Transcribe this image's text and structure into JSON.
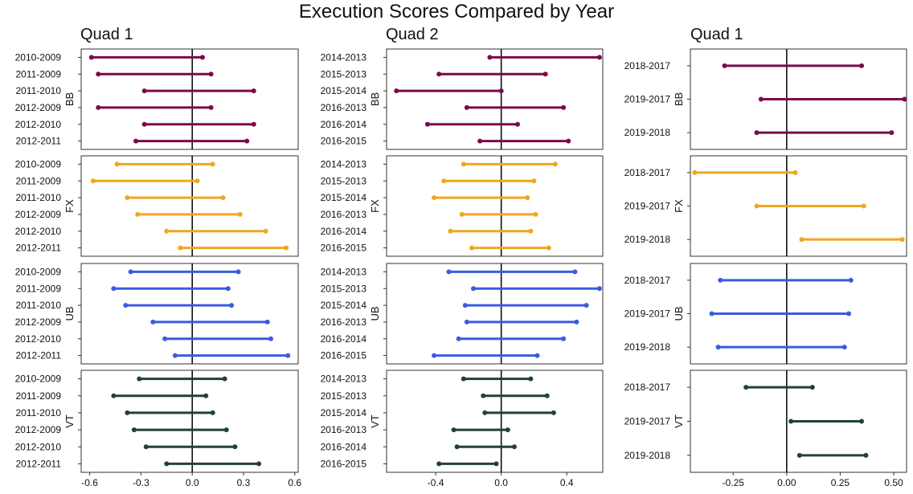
{
  "title": "Execution Scores Compared by Year",
  "chart_data": [
    {
      "type": "dumbbell",
      "title": "Quad 1",
      "xlim": [
        -0.65,
        0.62
      ],
      "x_ticks": [
        -0.6,
        -0.3,
        0.0,
        0.3,
        0.6
      ],
      "x_tick_labels": [
        "-0.6",
        "-0.3",
        "0.0",
        "0.3",
        "0.6"
      ],
      "reference_line": 0,
      "grid": false,
      "categories": [
        "2010-2009",
        "2011-2009",
        "2011-2010",
        "2012-2009",
        "2012-2010",
        "2012-2011"
      ],
      "panels": [
        {
          "label": "BB",
          "color": "#7B0A4B",
          "low": [
            -0.59,
            -0.55,
            -0.28,
            -0.55,
            -0.28,
            -0.33
          ],
          "high": [
            0.06,
            0.11,
            0.36,
            0.11,
            0.36,
            0.32
          ]
        },
        {
          "label": "FX",
          "color": "#F0A71E",
          "low": [
            -0.44,
            -0.58,
            -0.38,
            -0.32,
            -0.15,
            -0.07
          ],
          "high": [
            0.12,
            0.03,
            0.18,
            0.28,
            0.43,
            0.55
          ]
        },
        {
          "label": "UB",
          "color": "#3A5BE0",
          "low": [
            -0.36,
            -0.46,
            -0.39,
            -0.23,
            -0.16,
            -0.1
          ],
          "high": [
            0.27,
            0.21,
            0.23,
            0.44,
            0.46,
            0.56
          ]
        },
        {
          "label": "VT",
          "color": "#22403A",
          "low": [
            -0.31,
            -0.46,
            -0.38,
            -0.34,
            -0.27,
            -0.15
          ],
          "high": [
            0.19,
            0.08,
            0.12,
            0.2,
            0.25,
            0.39
          ]
        }
      ]
    },
    {
      "type": "dumbbell",
      "title": "Quad 2",
      "xlim": [
        -0.7,
        0.62
      ],
      "x_ticks": [
        -0.4,
        0.0,
        0.4
      ],
      "x_tick_labels": [
        "-0.4",
        "0.0",
        "0.4"
      ],
      "reference_line": 0,
      "grid": false,
      "categories": [
        "2014-2013",
        "2015-2013",
        "2015-2014",
        "2016-2013",
        "2016-2014",
        "2016-2015"
      ],
      "panels": [
        {
          "label": "BB",
          "color": "#7B0A4B",
          "low": [
            -0.07,
            -0.38,
            -0.64,
            -0.21,
            -0.45,
            -0.13
          ],
          "high": [
            0.6,
            0.27,
            0.0,
            0.38,
            0.1,
            0.41
          ]
        },
        {
          "label": "FX",
          "color": "#F0A71E",
          "low": [
            -0.23,
            -0.35,
            -0.41,
            -0.24,
            -0.31,
            -0.18
          ],
          "high": [
            0.33,
            0.2,
            0.16,
            0.21,
            0.18,
            0.29
          ]
        },
        {
          "label": "UB",
          "color": "#3A5BE0",
          "low": [
            -0.32,
            -0.17,
            -0.22,
            -0.21,
            -0.26,
            -0.41
          ],
          "high": [
            0.45,
            0.6,
            0.52,
            0.46,
            0.38,
            0.22
          ]
        },
        {
          "label": "VT",
          "color": "#22403A",
          "low": [
            -0.23,
            -0.11,
            -0.1,
            -0.29,
            -0.27,
            -0.38
          ],
          "high": [
            0.18,
            0.28,
            0.32,
            0.04,
            0.08,
            -0.03
          ]
        }
      ]
    },
    {
      "type": "dumbbell",
      "title": "Quad 1",
      "xlim": [
        -0.45,
        0.56
      ],
      "x_ticks": [
        -0.25,
        0.0,
        0.25,
        0.5
      ],
      "x_tick_labels": [
        "-0.25",
        "0.00",
        "0.25",
        "0.50"
      ],
      "reference_line": 0,
      "grid": false,
      "categories": [
        "2018-2017",
        "2019-2017",
        "2019-2018"
      ],
      "panels": [
        {
          "label": "BB",
          "color": "#7B0A4B",
          "low": [
            -0.29,
            -0.12,
            -0.14
          ],
          "high": [
            0.35,
            0.55,
            0.49
          ]
        },
        {
          "label": "FX",
          "color": "#F0A71E",
          "low": [
            -0.43,
            -0.14,
            0.07
          ],
          "high": [
            0.04,
            0.36,
            0.54
          ]
        },
        {
          "label": "UB",
          "color": "#3A5BE0",
          "low": [
            -0.31,
            -0.35,
            -0.32
          ],
          "high": [
            0.3,
            0.29,
            0.27
          ]
        },
        {
          "label": "VT",
          "color": "#22403A",
          "low": [
            -0.19,
            0.02,
            0.06
          ],
          "high": [
            0.12,
            0.35,
            0.37
          ]
        }
      ]
    }
  ]
}
